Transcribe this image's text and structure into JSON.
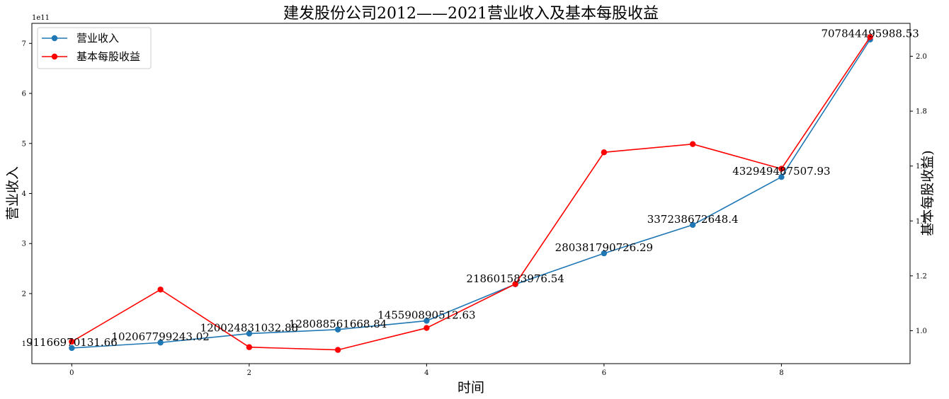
{
  "chart_data": {
    "type": "line",
    "title": "建发股份公司2012——2021营业收入及基本每股收益",
    "xlabel": "时间",
    "ylabel_left": "营业收入",
    "ylabel_right": "基本每股收益)",
    "left_offset_text": "1e11",
    "x": [
      0,
      1,
      2,
      3,
      4,
      5,
      6,
      7,
      8,
      9
    ],
    "xticks": [
      "0",
      "2",
      "4",
      "6",
      "8"
    ],
    "xlim": [
      -0.45,
      9.45
    ],
    "left_yticks": [
      "1",
      "2",
      "3",
      "4",
      "5",
      "6",
      "7"
    ],
    "left_ylim": [
      60000000000.0,
      740000000000.0
    ],
    "right_yticks": [
      "1.0",
      "1.2",
      "1.4",
      "1.6",
      "1.8",
      "2.0"
    ],
    "right_ylim": [
      0.88,
      2.12
    ],
    "grid": false,
    "legend_position": "top-left",
    "series": [
      {
        "name": "营业收入",
        "axis": "left",
        "color": "#1f77b4",
        "values": [
          91166970131.66,
          102067799243.02,
          120024831032.88,
          128088561668.84,
          145590890512.63,
          218601583976.54,
          280381790726.29,
          337238672648.4,
          432949487507.93,
          707844495988.53
        ],
        "labels": [
          "91166970131.66",
          "102067799243.02",
          "120024831032.88",
          "128088561668.84",
          "145590890512.63",
          "218601583976.54",
          "280381790726.29",
          "337238672648.4",
          "432949487507.93",
          "707844495988.53"
        ]
      },
      {
        "name": "基本每股收益",
        "axis": "right",
        "color": "#ff0000",
        "values": [
          0.96,
          1.15,
          0.94,
          0.93,
          1.01,
          1.17,
          1.65,
          1.68,
          1.59,
          2.07
        ]
      }
    ]
  }
}
